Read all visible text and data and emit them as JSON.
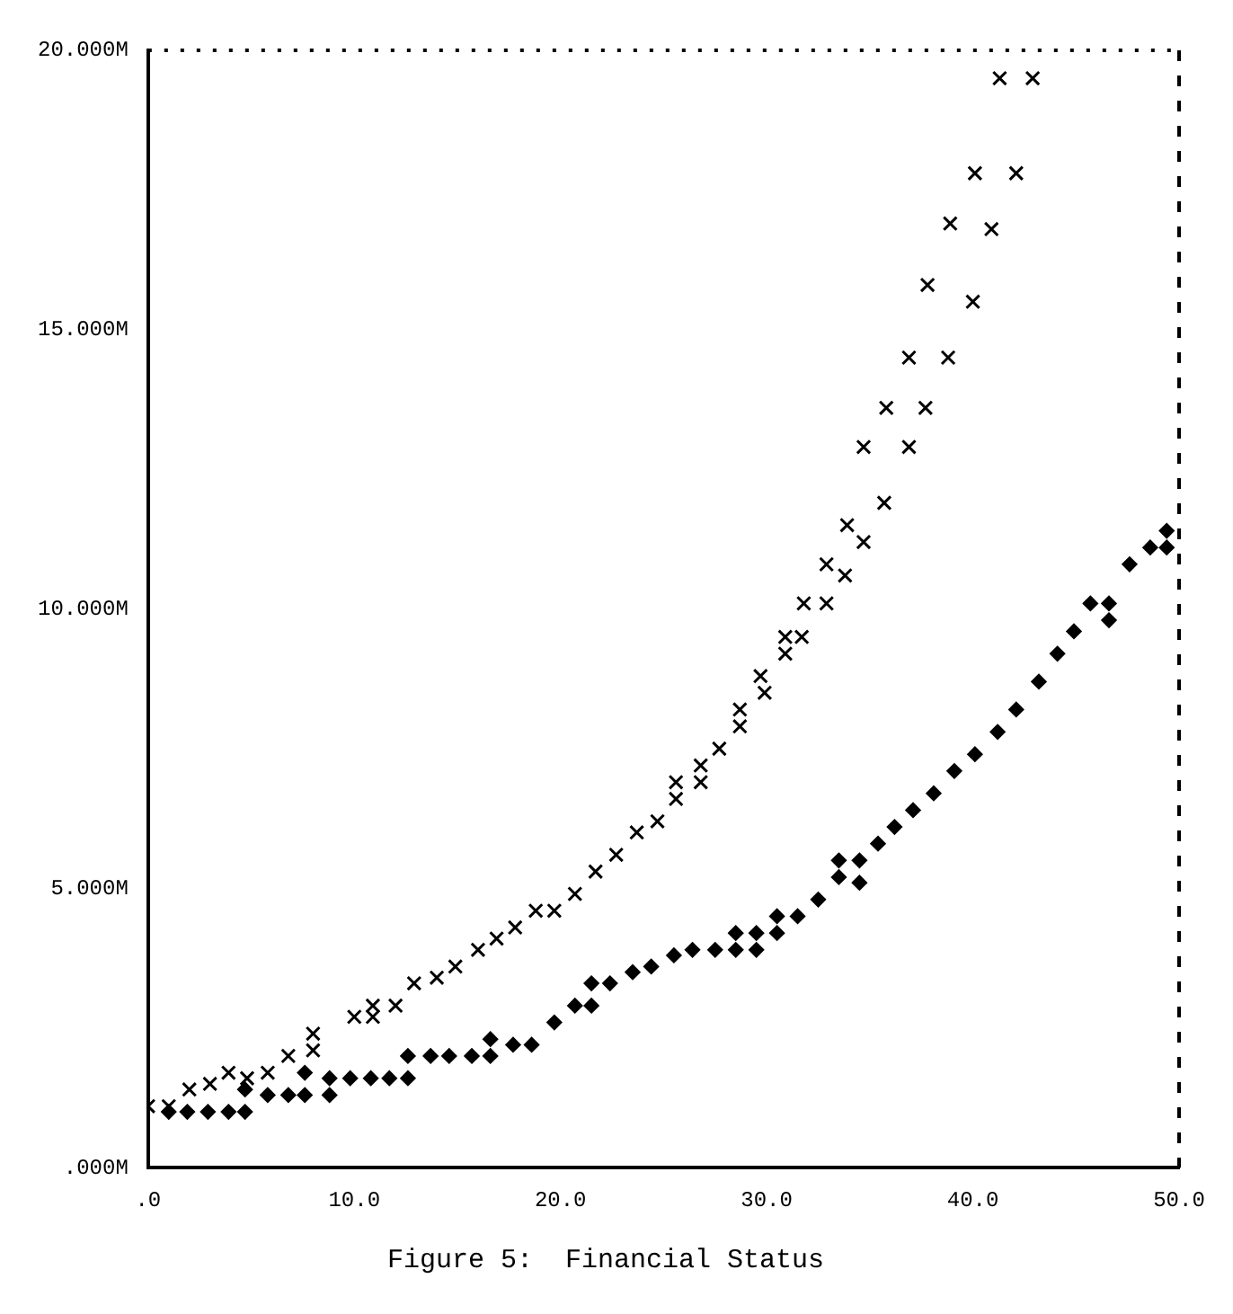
{
  "chart_data": {
    "type": "scatter",
    "title": "Figure 5:  Financial Status",
    "xlim": [
      0,
      50
    ],
    "ylim": [
      0,
      20
    ],
    "xticks": [
      {
        "value": 0,
        "label": ".0"
      },
      {
        "value": 10,
        "label": "10.0"
      },
      {
        "value": 20,
        "label": "20.0"
      },
      {
        "value": 30,
        "label": "30.0"
      },
      {
        "value": 40,
        "label": "40.0"
      },
      {
        "value": 50,
        "label": "50.0"
      }
    ],
    "yticks": [
      {
        "value": 0,
        "label": ".000M"
      },
      {
        "value": 5,
        "label": "5.000M"
      },
      {
        "value": 10,
        "label": "10.000M"
      },
      {
        "value": 15,
        "label": "15.000M"
      },
      {
        "value": 20,
        "label": "20.000M"
      }
    ],
    "grid": false,
    "legend": false,
    "series": [
      {
        "color": "#000000",
        "marker": "cross",
        "x": [
          0.0,
          1.0,
          2.0,
          3.0,
          3.9,
          4.8,
          5.8,
          6.8,
          8.0,
          8.0,
          10.0,
          10.9,
          10.9,
          12.0,
          12.9,
          14.0,
          14.9,
          16.0,
          16.9,
          17.8,
          18.8,
          19.7,
          20.7,
          21.7,
          22.7,
          23.7,
          24.7,
          25.6,
          25.6,
          26.8,
          26.8,
          27.7,
          28.7,
          28.7,
          29.7,
          29.9,
          30.9,
          30.9,
          31.7,
          31.8,
          32.9,
          32.9,
          33.8,
          33.9,
          34.7,
          34.7,
          35.7,
          35.8,
          36.9,
          36.9,
          37.7,
          37.8,
          38.8,
          38.9,
          40.0,
          40.1,
          40.9,
          41.3,
          42.1,
          42.9
        ],
        "values": [
          1.1,
          1.1,
          1.4,
          1.5,
          1.7,
          1.6,
          1.7,
          2.0,
          2.4,
          2.1,
          2.7,
          2.9,
          2.7,
          2.9,
          3.3,
          3.4,
          3.6,
          3.9,
          4.1,
          4.3,
          4.6,
          4.6,
          4.9,
          5.3,
          5.6,
          6.0,
          6.2,
          6.9,
          6.6,
          7.2,
          6.9,
          7.5,
          8.2,
          7.9,
          8.8,
          8.5,
          9.5,
          9.2,
          9.5,
          10.1,
          10.1,
          10.8,
          10.6,
          11.5,
          11.2,
          12.9,
          11.9,
          13.6,
          12.9,
          14.5,
          13.6,
          15.8,
          14.5,
          16.9,
          15.5,
          17.8,
          16.8,
          19.5,
          17.8,
          19.5
        ]
      },
      {
        "color": "#000000",
        "marker": "diamond",
        "x": [
          1.0,
          1.9,
          2.9,
          3.9,
          4.7,
          4.7,
          5.8,
          6.8,
          7.6,
          8.8,
          7.6,
          8.8,
          9.8,
          10.8,
          11.7,
          12.6,
          12.6,
          13.7,
          14.6,
          15.7,
          16.6,
          16.6,
          17.7,
          18.6,
          19.7,
          20.7,
          21.5,
          21.5,
          22.4,
          23.5,
          24.4,
          25.5,
          26.4,
          27.5,
          28.5,
          28.5,
          29.5,
          29.5,
          30.5,
          30.5,
          31.5,
          32.5,
          33.5,
          33.5,
          34.5,
          34.5,
          35.4,
          36.2,
          37.1,
          38.1,
          39.1,
          40.1,
          41.2,
          42.1,
          43.2,
          44.1,
          44.9,
          45.7,
          46.6,
          46.6,
          47.6,
          48.6,
          49.4,
          49.4
        ],
        "values": [
          1.0,
          1.0,
          1.0,
          1.0,
          1.0,
          1.4,
          1.3,
          1.3,
          1.3,
          1.3,
          1.7,
          1.6,
          1.6,
          1.6,
          1.6,
          1.6,
          2.0,
          2.0,
          2.0,
          2.0,
          2.0,
          2.3,
          2.2,
          2.2,
          2.6,
          2.9,
          3.3,
          2.9,
          3.3,
          3.5,
          3.6,
          3.8,
          3.9,
          3.9,
          3.9,
          4.2,
          3.9,
          4.2,
          4.2,
          4.5,
          4.5,
          4.8,
          5.5,
          5.2,
          5.5,
          5.1,
          5.8,
          6.1,
          6.4,
          6.7,
          7.1,
          7.4,
          7.8,
          8.2,
          8.7,
          9.2,
          9.6,
          10.1,
          10.1,
          9.8,
          10.8,
          11.1,
          11.4,
          11.1
        ]
      }
    ]
  }
}
